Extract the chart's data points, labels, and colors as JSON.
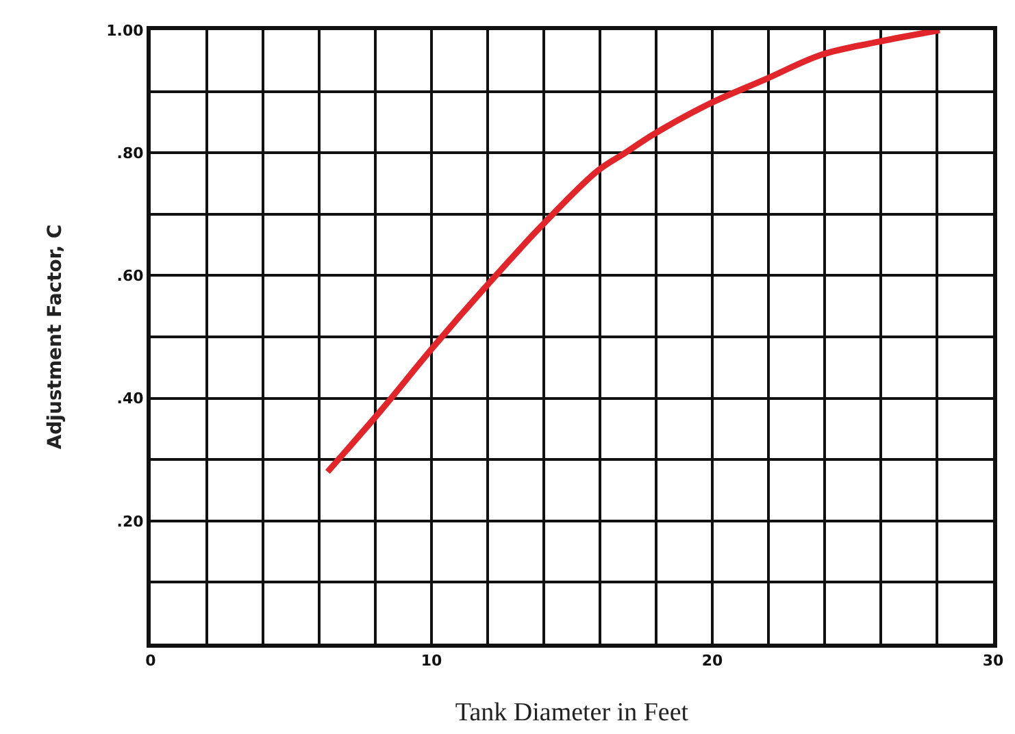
{
  "chart_data": {
    "type": "line",
    "xlabel": "Tank Diameter in Feet",
    "ylabel": "Adjustment Factor, C",
    "x": [
      6.3,
      8.2,
      10.0,
      11.9,
      13.9,
      15.9,
      16.9,
      17.9,
      19.9,
      21.9,
      23.9,
      25.8,
      28.1
    ],
    "series": [
      {
        "color": "#e0262a",
        "values": [
          0.28,
          0.38,
          0.48,
          0.58,
          0.68,
          0.77,
          0.8,
          0.83,
          0.88,
          0.92,
          0.96,
          0.98,
          1.0
        ]
      }
    ],
    "xlim": [
      0,
      30
    ],
    "ylim": [
      0,
      1.0
    ],
    "xticks": [
      0,
      {
        "value": 2,
        "label": null
      },
      {
        "value": 4,
        "label": null
      },
      {
        "value": 6,
        "label": null
      },
      {
        "value": 8,
        "label": null
      },
      10,
      {
        "value": 12,
        "label": null
      },
      {
        "value": 14,
        "label": null
      },
      {
        "value": 16,
        "label": null
      },
      {
        "value": 18,
        "label": null
      },
      20,
      {
        "value": 22,
        "label": null
      },
      {
        "value": 24,
        "label": null
      },
      {
        "value": 26,
        "label": null
      },
      {
        "value": 28,
        "label": null
      },
      30
    ],
    "yticks": [
      {
        "value": 0.1,
        "label": null
      },
      {
        "value": 0.2,
        "label": ".20"
      },
      {
        "value": 0.3,
        "label": null
      },
      {
        "value": 0.4,
        "label": ".40"
      },
      {
        "value": 0.5,
        "label": null
      },
      {
        "value": 0.6,
        "label": ".60"
      },
      {
        "value": 0.7,
        "label": null
      },
      {
        "value": 0.8,
        "label": ".80"
      },
      {
        "value": 0.9,
        "label": null
      },
      {
        "value": 1.0,
        "label": "1.00"
      }
    ],
    "grid": true,
    "marker": "none",
    "line_style": "solid"
  }
}
